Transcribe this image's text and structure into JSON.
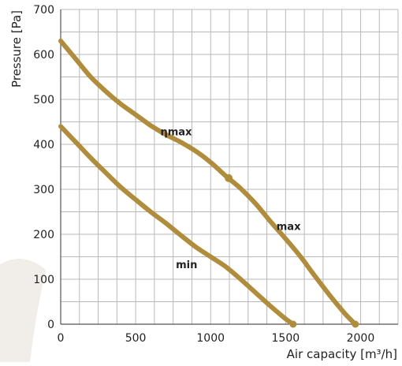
{
  "chart_data": {
    "type": "line",
    "title": "",
    "xlabel": "Air capacity [m³/h]",
    "ylabel": "Pressure [Pa]",
    "xlim": [
      0,
      2250
    ],
    "ylim": [
      0,
      700
    ],
    "xticks": [
      0,
      500,
      1000,
      1500,
      2000
    ],
    "yticks": [
      0,
      100,
      200,
      300,
      400,
      500,
      600,
      700
    ],
    "grid": true,
    "grid_x_step": 125,
    "grid_y_step": 50,
    "series": [
      {
        "name": "max",
        "color": "#b08d3c",
        "x": [
          0,
          100,
          200,
          300,
          400,
          500,
          600,
          700,
          800,
          900,
          1000,
          1100,
          1200,
          1300,
          1400,
          1500,
          1600,
          1700,
          1800,
          1900,
          1965
        ],
        "y": [
          630,
          590,
          550,
          518,
          490,
          466,
          442,
          422,
          405,
          385,
          360,
          330,
          302,
          268,
          228,
          190,
          150,
          105,
          62,
          22,
          0
        ]
      },
      {
        "name": "min",
        "color": "#b08d3c",
        "x": [
          0,
          100,
          200,
          300,
          400,
          500,
          600,
          700,
          800,
          900,
          1000,
          1100,
          1200,
          1300,
          1400,
          1500,
          1550
        ],
        "y": [
          440,
          405,
          370,
          337,
          305,
          277,
          250,
          225,
          198,
          172,
          150,
          128,
          100,
          70,
          40,
          12,
          0
        ]
      }
    ],
    "annotations": [
      {
        "text": "ηmax",
        "x": 770,
        "y": 420
      },
      {
        "text": "max",
        "x": 1520,
        "y": 210
      },
      {
        "text": "min",
        "x": 840,
        "y": 125
      }
    ],
    "markers": [
      {
        "x": 1120,
        "y": 325
      }
    ]
  }
}
